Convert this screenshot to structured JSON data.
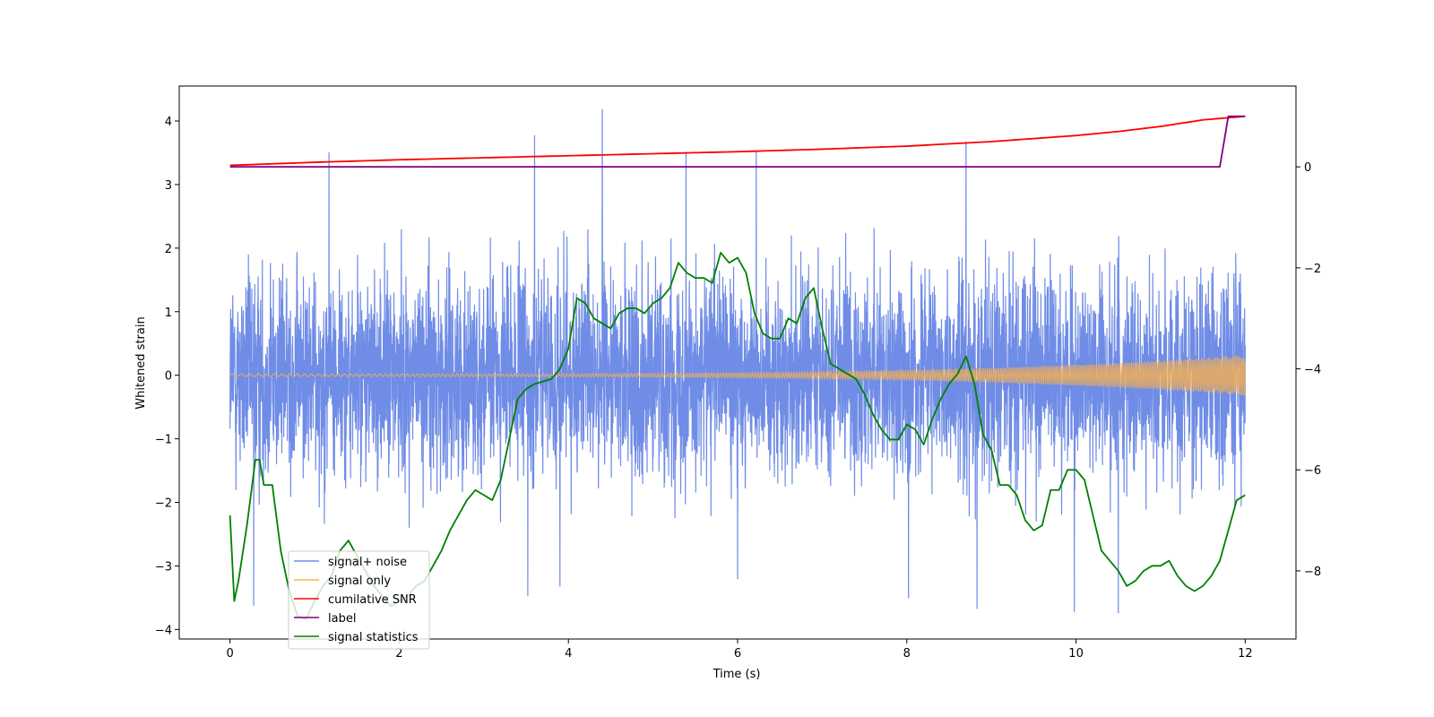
{
  "chart_data": {
    "type": "line",
    "title": "",
    "xlabel": "Time (s)",
    "ylabel": "Whitened strain",
    "xlim": [
      -0.6,
      12.6
    ],
    "ylim": [
      -4.15,
      4.55
    ],
    "y2lim": [
      -9.35,
      1.6
    ],
    "x_ticks": [
      0,
      2,
      4,
      6,
      8,
      10,
      12
    ],
    "x_tick_labels": [
      "0",
      "2",
      "4",
      "6",
      "8",
      "10",
      "12"
    ],
    "y_ticks": [
      -4,
      -3,
      -2,
      -1,
      0,
      1,
      2,
      3,
      4
    ],
    "y_tick_labels": [
      "−4",
      "−3",
      "−2",
      "−1",
      "0",
      "1",
      "2",
      "3",
      "4"
    ],
    "y2_ticks": [
      -8,
      -6,
      -4,
      -2,
      0
    ],
    "y2_tick_labels": [
      "−8",
      "−6",
      "−4",
      "−2",
      "0"
    ],
    "legend_position": "lower-left",
    "colors": {
      "noise": "#6f8ce6",
      "signal": "#ffb347",
      "snr": "#ff0000",
      "label": "#800080",
      "stats": "#008000"
    },
    "series": [
      {
        "name": "signal+ noise",
        "axis": "left",
        "description": "dense whitened noise, x 0 to 12, roughly within -2.5..2.9 with spikes",
        "x_range": [
          0,
          12
        ],
        "typical_band": [
          -2.5,
          2.9
        ],
        "spikes": [
          {
            "x": 1.17,
            "y": 3.5
          },
          {
            "x": 3.6,
            "y": 3.77
          },
          {
            "x": 4.4,
            "y": 4.18
          },
          {
            "x": 5.39,
            "y": 3.51
          },
          {
            "x": 6.22,
            "y": 3.52
          },
          {
            "x": 8.7,
            "y": 3.67
          },
          {
            "x": 0.28,
            "y": -3.62
          },
          {
            "x": 3.52,
            "y": -3.47
          },
          {
            "x": 3.9,
            "y": -3.32
          },
          {
            "x": 8.02,
            "y": -3.5
          },
          {
            "x": 8.83,
            "y": -3.67
          },
          {
            "x": 9.98,
            "y": -3.72
          },
          {
            "x": 10.5,
            "y": -3.74
          },
          {
            "x": 6.0,
            "y": -3.2
          }
        ]
      },
      {
        "name": "signal only",
        "axis": "left",
        "description": "chirp oscillation about 0, amplitude growing from ~0.02 to ~0.32",
        "x_range": [
          0,
          12
        ],
        "amplitude_start": 0.02,
        "amplitude_end": 0.32
      },
      {
        "name": "cumilative SNR",
        "axis": "right",
        "x": [
          0,
          1,
          2,
          3,
          4,
          5,
          6,
          7,
          8,
          9,
          10,
          10.5,
          11,
          11.5,
          12
        ],
        "y": [
          0.03,
          0.09,
          0.14,
          0.18,
          0.22,
          0.26,
          0.3,
          0.35,
          0.41,
          0.5,
          0.62,
          0.7,
          0.8,
          0.93,
          1.0
        ]
      },
      {
        "name": "label",
        "axis": "right",
        "x": [
          0,
          11.7,
          11.8,
          12
        ],
        "y": [
          0,
          0,
          1,
          1
        ]
      },
      {
        "name": "signal statistics",
        "axis": "right",
        "x": [
          0,
          0.05,
          0.1,
          0.2,
          0.3,
          0.35,
          0.4,
          0.5,
          0.6,
          0.7,
          0.8,
          0.9,
          1.0,
          1.1,
          1.2,
          1.3,
          1.4,
          1.5,
          1.6,
          1.7,
          1.8,
          1.9,
          2.0,
          2.1,
          2.2,
          2.3,
          2.4,
          2.5,
          2.6,
          2.7,
          2.8,
          2.9,
          3.0,
          3.1,
          3.2,
          3.3,
          3.4,
          3.5,
          3.6,
          3.7,
          3.8,
          3.9,
          4.0,
          4.1,
          4.2,
          4.3,
          4.4,
          4.5,
          4.6,
          4.7,
          4.8,
          4.9,
          5.0,
          5.1,
          5.2,
          5.3,
          5.4,
          5.5,
          5.6,
          5.7,
          5.8,
          5.9,
          6.0,
          6.1,
          6.2,
          6.3,
          6.4,
          6.5,
          6.6,
          6.7,
          6.8,
          6.9,
          7.0,
          7.1,
          7.2,
          7.3,
          7.4,
          7.5,
          7.6,
          7.7,
          7.8,
          7.9,
          8.0,
          8.1,
          8.2,
          8.3,
          8.4,
          8.5,
          8.6,
          8.7,
          8.8,
          8.9,
          9.0,
          9.1,
          9.2,
          9.3,
          9.4,
          9.5,
          9.6,
          9.7,
          9.8,
          9.9,
          10.0,
          10.1,
          10.2,
          10.3,
          10.4,
          10.5,
          10.6,
          10.7,
          10.8,
          10.9,
          11.0,
          11.1,
          11.2,
          11.3,
          11.4,
          11.5,
          11.6,
          11.7,
          11.8,
          11.9,
          12.0
        ],
        "y": [
          -6.9,
          -8.6,
          -8.2,
          -7.1,
          -5.8,
          -5.8,
          -6.3,
          -6.3,
          -7.6,
          -8.4,
          -8.9,
          -8.95,
          -8.6,
          -8.3,
          -8.1,
          -7.6,
          -7.4,
          -7.7,
          -8.0,
          -8.3,
          -8.5,
          -8.7,
          -8.6,
          -8.5,
          -8.3,
          -8.2,
          -7.9,
          -7.6,
          -7.2,
          -6.9,
          -6.6,
          -6.4,
          -6.5,
          -6.6,
          -6.2,
          -5.4,
          -4.6,
          -4.4,
          -4.3,
          -4.25,
          -4.2,
          -4.0,
          -3.6,
          -2.6,
          -2.7,
          -3.0,
          -3.1,
          -3.2,
          -2.9,
          -2.8,
          -2.8,
          -2.9,
          -2.7,
          -2.6,
          -2.4,
          -1.9,
          -2.1,
          -2.2,
          -2.2,
          -2.3,
          -1.7,
          -1.9,
          -1.8,
          -2.1,
          -2.9,
          -3.3,
          -3.4,
          -3.4,
          -3.0,
          -3.1,
          -2.6,
          -2.4,
          -3.2,
          -3.9,
          -4.0,
          -4.1,
          -4.2,
          -4.5,
          -4.9,
          -5.2,
          -5.4,
          -5.4,
          -5.1,
          -5.2,
          -5.5,
          -5.0,
          -4.6,
          -4.3,
          -4.1,
          -3.75,
          -4.3,
          -5.3,
          -5.6,
          -6.3,
          -6.3,
          -6.5,
          -7.0,
          -7.2,
          -7.1,
          -6.4,
          -6.4,
          -6.0,
          -6.0,
          -6.2,
          -6.9,
          -7.6,
          -7.8,
          -8.0,
          -8.3,
          -8.2,
          -8.0,
          -7.9,
          -7.9,
          -7.8,
          -8.1,
          -8.3,
          -8.4,
          -8.3,
          -8.1,
          -7.8,
          -7.2,
          -6.6,
          -6.5
        ]
      }
    ]
  }
}
